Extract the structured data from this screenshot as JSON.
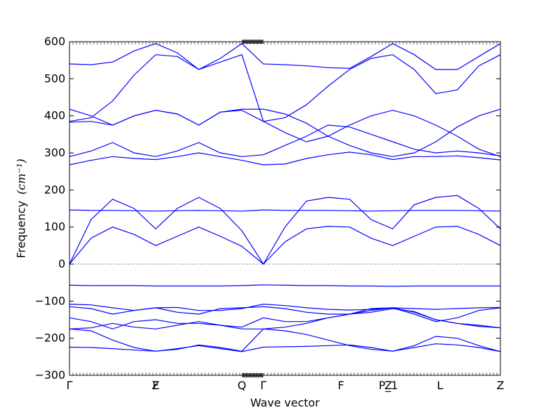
{
  "chart_data": {
    "type": "line",
    "title": "",
    "xlabel": "Wave vector",
    "ylabel": "Frequency",
    "ylabel_units": "(cm⁻¹)",
    "ylim": [
      -300,
      600
    ],
    "yticks": [
      -300,
      -200,
      -100,
      0,
      100,
      200,
      300,
      400,
      500,
      600
    ],
    "grid": false,
    "line_color": "#0000ff",
    "zero_line": "dotted",
    "x_labels": [
      {
        "label": "Γ",
        "x": 0.0
      },
      {
        "label": "Z",
        "x": 2.0
      },
      {
        "label": "F",
        "x": 2.0
      },
      {
        "label": "Q",
        "x": 4.0
      },
      {
        "label": "Γ",
        "x": 4.5
      },
      {
        "label": "F",
        "x": 6.3
      },
      {
        "label": "P_1",
        "x": 7.4
      },
      {
        "label": "Z",
        "x": 7.4
      },
      {
        "label": "L",
        "x": 8.6
      },
      {
        "label": "Z",
        "x": 10.3
      }
    ],
    "x": [
      0,
      0.5,
      1,
      1.5,
      2,
      2.5,
      3,
      3.5,
      4,
      4.5,
      5,
      5.5,
      6,
      6.5,
      7,
      7.5,
      8,
      8.5,
      9,
      9.5,
      10
    ],
    "series": [
      {
        "values": [
          540,
          538,
          545,
          575,
          595,
          570,
          525,
          555,
          595,
          540,
          538,
          535,
          530,
          528,
          560,
          595,
          565,
          525,
          525,
          560,
          595
        ]
      },
      {
        "values": [
          385,
          395,
          440,
          510,
          565,
          560,
          525,
          545,
          565,
          385,
          395,
          430,
          480,
          525,
          555,
          565,
          525,
          460,
          470,
          535,
          565
        ]
      },
      {
        "values": [
          418,
          400,
          375,
          400,
          415,
          405,
          375,
          410,
          418,
          418,
          405,
          380,
          345,
          320,
          300,
          290,
          300,
          330,
          370,
          400,
          418
        ]
      },
      {
        "values": [
          383,
          385,
          375,
          400,
          415,
          405,
          375,
          410,
          415,
          385,
          355,
          330,
          345,
          375,
          400,
          415,
          400,
          375,
          345,
          310,
          290
        ]
      },
      {
        "values": [
          290,
          305,
          328,
          300,
          290,
          305,
          328,
          300,
          290,
          295,
          320,
          345,
          375,
          370,
          350,
          330,
          310,
          300,
          305,
          300,
          292
        ]
      },
      {
        "values": [
          268,
          280,
          290,
          285,
          282,
          290,
          300,
          290,
          280,
          268,
          270,
          285,
          295,
          302,
          295,
          282,
          290,
          290,
          292,
          287,
          281
        ]
      },
      {
        "values": [
          0,
          120,
          175,
          150,
          95,
          150,
          180,
          150,
          90,
          0,
          100,
          170,
          180,
          175,
          120,
          95,
          160,
          180,
          185,
          150,
          95
        ]
      },
      {
        "values": [
          146,
          145,
          145,
          144,
          143,
          144,
          145,
          144,
          143,
          146,
          145,
          145,
          145,
          144,
          143,
          144,
          145,
          145,
          145,
          144,
          143
        ]
      },
      {
        "values": [
          0,
          70,
          100,
          80,
          50,
          75,
          100,
          75,
          48,
          0,
          60,
          95,
          102,
          100,
          70,
          50,
          75,
          100,
          102,
          80,
          50
        ]
      },
      {
        "values": [
          -57,
          -58,
          -58,
          -58,
          -59,
          -59,
          -59,
          -59,
          -58,
          -56,
          -57,
          -58,
          -58,
          -59,
          -59,
          -60,
          -59,
          -59,
          -59,
          -59,
          -59
        ]
      },
      {
        "values": [
          -108,
          -110,
          -118,
          -125,
          -118,
          -117,
          -125,
          -125,
          -120,
          -108,
          -112,
          -118,
          -122,
          -124,
          -122,
          -118,
          -120,
          -122,
          -120,
          -118,
          -117
        ]
      },
      {
        "values": [
          -115,
          -120,
          -135,
          -125,
          -118,
          -130,
          -135,
          -120,
          -118,
          -115,
          -120,
          -130,
          -135,
          -135,
          -125,
          -118,
          -135,
          -155,
          -145,
          -125,
          -118
        ]
      },
      {
        "values": [
          -145,
          -155,
          -175,
          -155,
          -150,
          -160,
          -160,
          -165,
          -170,
          -145,
          -155,
          -155,
          -145,
          -135,
          -120,
          -118,
          -130,
          -150,
          -160,
          -168,
          -172
        ]
      },
      {
        "values": [
          -175,
          -172,
          -160,
          -170,
          -175,
          -165,
          -155,
          -165,
          -175,
          -175,
          -170,
          -160,
          -145,
          -135,
          -130,
          -120,
          -128,
          -150,
          -160,
          -165,
          -172
        ]
      },
      {
        "values": [
          -175,
          -180,
          -205,
          -225,
          -235,
          -230,
          -218,
          -225,
          -235,
          -175,
          -180,
          -190,
          -205,
          -220,
          -230,
          -235,
          -220,
          -195,
          -200,
          -220,
          -236
        ]
      },
      {
        "values": [
          -224,
          -225,
          -228,
          -232,
          -235,
          -228,
          -220,
          -228,
          -236,
          -224,
          -223,
          -222,
          -220,
          -218,
          -225,
          -235,
          -225,
          -215,
          -218,
          -225,
          -236
        ]
      }
    ]
  }
}
